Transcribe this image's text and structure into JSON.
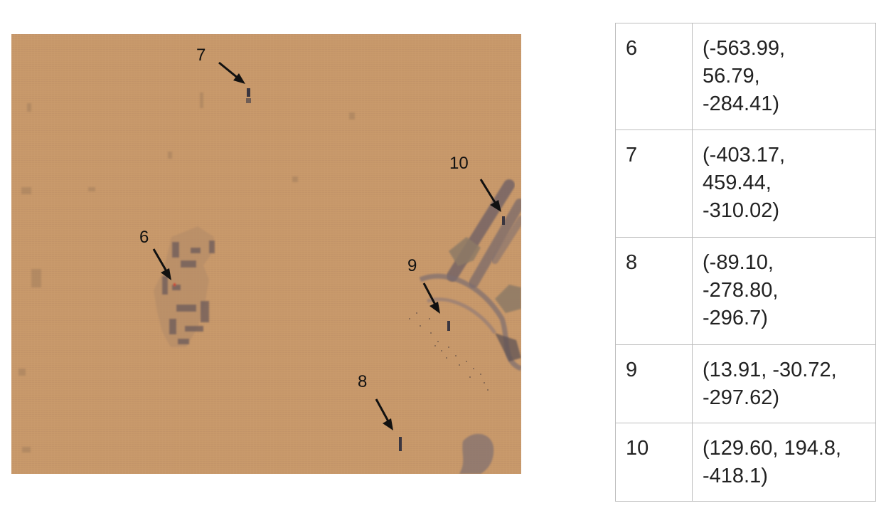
{
  "sonar_map": {
    "background_color": "#c8996a",
    "arrow_color": "#111111",
    "markers": [
      {
        "label": "6"
      },
      {
        "label": "7"
      },
      {
        "label": "8"
      },
      {
        "label": "9"
      },
      {
        "label": "10"
      }
    ]
  },
  "coordinates_table": {
    "rows": [
      {
        "id": "6",
        "coords": "(-563.99,\n56.79,\n-284.41)"
      },
      {
        "id": "7",
        "coords": "(-403.17,\n459.44,\n-310.02)"
      },
      {
        "id": "8",
        "coords": "(-89.10,\n-278.80,\n-296.7)"
      },
      {
        "id": "9",
        "coords": "(13.91, -30.72,\n-297.62)"
      },
      {
        "id": "10",
        "coords": "(129.60, 194.8,\n-418.1)"
      }
    ]
  }
}
